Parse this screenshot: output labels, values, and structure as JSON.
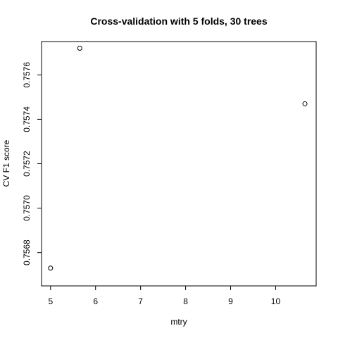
{
  "chart_data": {
    "type": "scatter",
    "title": "Cross-validation with 5 folds, 30 trees",
    "xlabel": "mtry",
    "ylabel": "CV F1 score",
    "xlim": [
      4.8,
      10.9
    ],
    "ylim": [
      0.75665,
      0.75775
    ],
    "x_ticks": [
      5,
      6,
      7,
      8,
      9,
      10
    ],
    "x_tick_labels": [
      "5",
      "6",
      "7",
      "8",
      "9",
      "10"
    ],
    "y_ticks": [
      0.7568,
      0.757,
      0.7572,
      0.7574,
      0.7576
    ],
    "y_tick_labels": [
      "0.7568",
      "0.7570",
      "0.7572",
      "0.7574",
      "0.7576"
    ],
    "grid": false,
    "legend": "none",
    "marker": "open-circle",
    "x": [
      5,
      5.65,
      10.65
    ],
    "y": [
      0.75673,
      0.75772,
      0.75747
    ]
  }
}
